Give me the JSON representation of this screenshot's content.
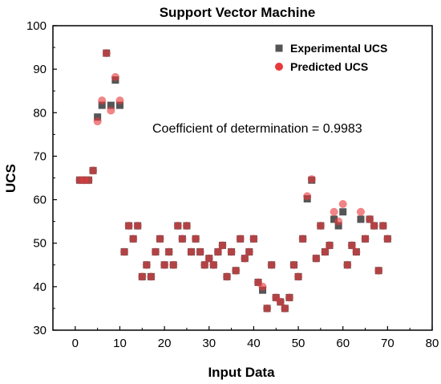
{
  "chart_data": {
    "type": "scatter",
    "title": "Support Vector Machine",
    "xlabel": "Input Data",
    "ylabel": "UCS",
    "xlim": [
      -5,
      80
    ],
    "ylim": [
      30,
      100
    ],
    "xticks": [
      0,
      10,
      20,
      30,
      40,
      50,
      60,
      70,
      80
    ],
    "yticks": [
      30,
      40,
      50,
      60,
      70,
      80,
      90,
      100
    ],
    "legend_position": "top-right",
    "annotation": "Coefficient of determination = 0.9983",
    "series": [
      {
        "name": "Experimental UCS",
        "marker": "square",
        "color": "#555555",
        "points": [
          [
            1,
            64.5
          ],
          [
            2,
            64.5
          ],
          [
            3,
            64.5
          ],
          [
            4,
            66.7
          ],
          [
            5,
            79
          ],
          [
            6,
            81.7
          ],
          [
            7,
            93.7
          ],
          [
            8,
            81.7
          ],
          [
            9,
            87.5
          ],
          [
            10,
            81.7
          ],
          [
            11,
            48
          ],
          [
            12,
            54
          ],
          [
            13,
            51
          ],
          [
            14,
            54
          ],
          [
            15,
            42.3
          ],
          [
            16,
            45
          ],
          [
            17,
            42.3
          ],
          [
            18,
            48
          ],
          [
            19,
            51
          ],
          [
            20,
            45
          ],
          [
            21,
            48
          ],
          [
            22,
            45
          ],
          [
            23,
            54
          ],
          [
            24,
            51
          ],
          [
            25,
            54
          ],
          [
            26,
            48
          ],
          [
            27,
            51
          ],
          [
            28,
            48
          ],
          [
            29,
            45
          ],
          [
            30,
            46.5
          ],
          [
            31,
            45
          ],
          [
            32,
            48
          ],
          [
            33,
            49.5
          ],
          [
            34,
            42.3
          ],
          [
            35,
            48
          ],
          [
            36,
            43.7
          ],
          [
            37,
            51
          ],
          [
            38,
            46.5
          ],
          [
            39,
            48
          ],
          [
            40,
            51
          ],
          [
            41,
            41
          ],
          [
            42,
            39.2
          ],
          [
            43,
            35
          ],
          [
            44,
            45
          ],
          [
            45,
            37.5
          ],
          [
            46,
            36.5
          ],
          [
            47,
            35
          ],
          [
            48,
            37.5
          ],
          [
            49,
            45
          ],
          [
            50,
            42.3
          ],
          [
            51,
            51
          ],
          [
            52,
            60.2
          ],
          [
            53,
            64.5
          ],
          [
            54,
            46.5
          ],
          [
            55,
            54
          ],
          [
            56,
            48
          ],
          [
            57,
            49.5
          ],
          [
            58,
            55.5
          ],
          [
            59,
            54
          ],
          [
            60,
            57.2
          ],
          [
            61,
            45
          ],
          [
            62,
            49.5
          ],
          [
            63,
            48
          ],
          [
            64,
            55.5
          ],
          [
            65,
            51
          ],
          [
            66,
            55.5
          ],
          [
            67,
            54
          ],
          [
            68,
            43.7
          ],
          [
            69,
            54
          ],
          [
            70,
            51
          ]
        ]
      },
      {
        "name": "Predicted UCS",
        "marker": "circle",
        "color": "#e8393b",
        "points": [
          [
            1,
            64.5
          ],
          [
            2,
            64.5
          ],
          [
            3,
            64.5
          ],
          [
            4,
            66.7
          ],
          [
            5,
            78
          ],
          [
            6,
            82.8
          ],
          [
            7,
            93.7
          ],
          [
            8,
            80.5
          ],
          [
            9,
            88.2
          ],
          [
            10,
            82.8
          ],
          [
            11,
            48
          ],
          [
            12,
            54
          ],
          [
            13,
            51
          ],
          [
            14,
            54
          ],
          [
            15,
            42.3
          ],
          [
            16,
            45
          ],
          [
            17,
            42.3
          ],
          [
            18,
            48
          ],
          [
            19,
            51
          ],
          [
            20,
            45
          ],
          [
            21,
            48
          ],
          [
            22,
            45
          ],
          [
            23,
            54
          ],
          [
            24,
            51
          ],
          [
            25,
            54
          ],
          [
            26,
            48
          ],
          [
            27,
            51
          ],
          [
            28,
            48
          ],
          [
            29,
            45
          ],
          [
            30,
            46.5
          ],
          [
            31,
            45
          ],
          [
            32,
            48
          ],
          [
            33,
            49.5
          ],
          [
            34,
            42.3
          ],
          [
            35,
            48
          ],
          [
            36,
            43.7
          ],
          [
            37,
            51
          ],
          [
            38,
            46.5
          ],
          [
            39,
            48
          ],
          [
            40,
            51
          ],
          [
            41,
            41
          ],
          [
            42,
            40
          ],
          [
            43,
            35
          ],
          [
            44,
            45
          ],
          [
            45,
            37.5
          ],
          [
            46,
            36.5
          ],
          [
            47,
            35
          ],
          [
            48,
            37.5
          ],
          [
            49,
            45
          ],
          [
            50,
            42.3
          ],
          [
            51,
            51
          ],
          [
            52,
            60.8
          ],
          [
            53,
            64.7
          ],
          [
            54,
            46.5
          ],
          [
            55,
            54
          ],
          [
            56,
            48
          ],
          [
            57,
            49.5
          ],
          [
            58,
            57.2
          ],
          [
            59,
            55
          ],
          [
            60,
            59
          ],
          [
            61,
            45
          ],
          [
            62,
            49.5
          ],
          [
            63,
            48
          ],
          [
            64,
            57.2
          ],
          [
            65,
            51
          ],
          [
            66,
            55.5
          ],
          [
            67,
            54
          ],
          [
            68,
            43.7
          ],
          [
            69,
            54
          ],
          [
            70,
            51
          ]
        ]
      }
    ]
  }
}
